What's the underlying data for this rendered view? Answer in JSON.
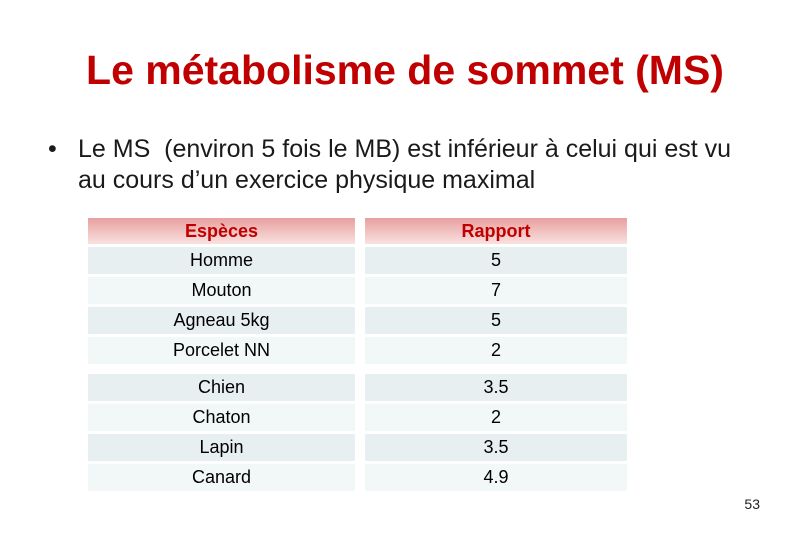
{
  "slide": {
    "title": "Le métabolisme de sommet (MS)",
    "bullet_glyph": "•",
    "bullet_text": "Le MS  (environ 5 fois le MB) est inférieur à celui qui est vu au cours d’un exercice physique maximal",
    "page_number": "53"
  },
  "table": {
    "headers": [
      "Espèces",
      "Rapport"
    ],
    "rows": [
      {
        "species": "Homme",
        "rapport": "5"
      },
      {
        "species": "Mouton",
        "rapport": "7"
      },
      {
        "species": "Agneau 5kg",
        "rapport": "5"
      },
      {
        "species": "Porcelet NN",
        "rapport": "2"
      },
      {
        "species": "Chien",
        "rapport": "3.5"
      },
      {
        "species": "Chaton",
        "rapport": "2"
      },
      {
        "species": "Lapin",
        "rapport": "3.5"
      },
      {
        "species": "Canard",
        "rapport": "4.9"
      }
    ]
  },
  "colors": {
    "title_red": "#c00000",
    "header_text_red": "#c00000",
    "header_gradient_top": "#e89f9f",
    "header_gradient_bottom": "#f8e2e0",
    "row_tint_dark": "#e7eff1",
    "row_tint_light": "#f2f7f8",
    "body_text": "#1a1a1a"
  }
}
